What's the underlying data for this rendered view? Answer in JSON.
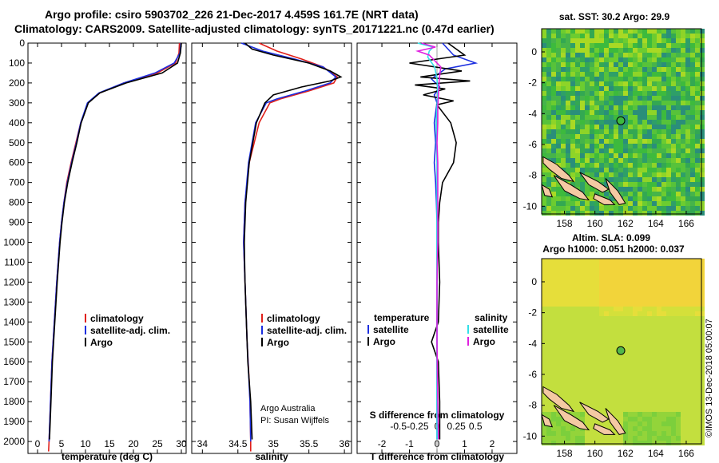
{
  "header": {
    "title_line1": "Argo profile: csiro 5903702_226 21-Dec-2017 4.459S 161.7E (NRT data)",
    "title_line2": "Climatology: CARS2009. Satellite-adjusted climatology: synTS_20171221.nc (0.47d earlier)"
  },
  "colors": {
    "climatology": "#e0201a",
    "satellite": "#1c2fe0",
    "argo": "#000000",
    "sat_salinity": "#33e0e8",
    "argo_salinity": "#e020e0"
  },
  "chart_data": [
    {
      "type": "line",
      "xlabel": "temperature (deg C)",
      "xticks": [
        "0",
        "5",
        "10",
        "15",
        "20",
        "25",
        "30"
      ],
      "yticks": [
        "0",
        "100",
        "200",
        "300",
        "400",
        "500",
        "600",
        "700",
        "800",
        "900",
        "1000",
        "1100",
        "1200",
        "1300",
        "1400",
        "1500",
        "1600",
        "1700",
        "1800",
        "1900",
        "2000"
      ],
      "xlim": [
        -2,
        31
      ],
      "ylim": [
        0,
        2060
      ],
      "legend": [
        "climatology",
        "satellite-adj. clim.",
        "Argo"
      ],
      "series": [
        {
          "name": "climatology",
          "depth": [
            0,
            50,
            100,
            150,
            200,
            250,
            300,
            400,
            500,
            600,
            700,
            800,
            900,
            1000,
            1200,
            1400,
            1600,
            1800,
            2000,
            2050
          ],
          "values": [
            29.6,
            29.5,
            28.8,
            25,
            18,
            13,
            10.5,
            9,
            8,
            7,
            6.1,
            5.5,
            5,
            4.6,
            4,
            3.5,
            3,
            2.7,
            2.4,
            2.3
          ]
        },
        {
          "name": "satellite-adj. clim.",
          "depth": [
            0,
            50,
            100,
            150,
            200,
            250,
            300,
            400,
            500,
            600,
            700,
            800,
            900,
            1000,
            1200,
            1400,
            1600,
            1800,
            2000
          ],
          "values": [
            29.9,
            29.7,
            28.5,
            24.5,
            18,
            12.8,
            10.4,
            9,
            8.1,
            7.1,
            6.2,
            5.5,
            5,
            4.6,
            4,
            3.5,
            3,
            2.7,
            2.4
          ]
        },
        {
          "name": "Argo",
          "depth": [
            0,
            50,
            100,
            150,
            200,
            250,
            300,
            400,
            500,
            600,
            700,
            800,
            900,
            1000,
            1200,
            1400,
            1600,
            1800,
            1990
          ],
          "values": [
            30,
            29.8,
            29.2,
            26,
            18.5,
            13,
            10.6,
            9.1,
            8.2,
            7.2,
            6.3,
            5.6,
            5.1,
            4.7,
            4.1,
            3.6,
            3.1,
            2.8,
            2.5
          ]
        }
      ]
    },
    {
      "type": "line",
      "xlabel": "salinity",
      "xticks": [
        "34",
        "34.5",
        "35",
        "35.5",
        "36"
      ],
      "xlim": [
        33.85,
        36.1
      ],
      "ylim": [
        0,
        2060
      ],
      "legend": [
        "climatology",
        "satellite-adj. clim.",
        "Argo"
      ],
      "annotation": [
        "Argo Australia",
        "PI: Susan Wijffels"
      ],
      "series": [
        {
          "name": "climatology",
          "depth": [
            0,
            40,
            80,
            120,
            170,
            200,
            240,
            280,
            300,
            400,
            600,
            800,
            1000,
            1200,
            1500,
            1700,
            1800,
            2000,
            2050
          ],
          "values": [
            34.8,
            35.05,
            35.4,
            35.7,
            35.9,
            35.85,
            35.5,
            35.1,
            34.95,
            34.8,
            34.66,
            34.6,
            34.58,
            34.6,
            34.63,
            34.66,
            34.67,
            34.68,
            34.68
          ]
        },
        {
          "name": "satellite-adj. clim.",
          "depth": [
            0,
            40,
            80,
            120,
            170,
            200,
            240,
            280,
            300,
            400,
            600,
            800,
            1000,
            1200,
            1500,
            1800,
            2000
          ],
          "values": [
            34.55,
            34.85,
            35.3,
            35.7,
            35.88,
            35.8,
            35.45,
            35.05,
            34.9,
            34.75,
            34.65,
            34.6,
            34.58,
            34.6,
            34.63,
            34.67,
            34.68
          ]
        },
        {
          "name": "Argo",
          "depth": [
            0,
            30,
            60,
            100,
            140,
            170,
            190,
            220,
            260,
            300,
            400,
            600,
            800,
            1000,
            1200,
            1400,
            1600,
            1800,
            1990
          ],
          "values": [
            34.6,
            34.7,
            35.0,
            35.5,
            35.8,
            35.95,
            35.8,
            35.4,
            35.0,
            34.88,
            34.76,
            34.66,
            34.61,
            34.59,
            34.6,
            34.62,
            34.64,
            34.68,
            34.7
          ]
        }
      ]
    },
    {
      "type": "line",
      "xlabel": "T difference from climatology",
      "title": "S difference from climatology",
      "xticks": [
        "-2",
        "-1",
        "0",
        "1",
        "2"
      ],
      "xticks_secondary": [
        "-0.5",
        "-0.25",
        "0",
        "0.25",
        "0.5"
      ],
      "xlim": [
        -2.9,
        2.9
      ],
      "ylim": [
        0,
        2060
      ],
      "legend_left_heading": "temperature",
      "legend_right_heading": "salinity",
      "legend_left": [
        "satellite",
        "Argo"
      ],
      "legend_right": [
        "satellite",
        "Argo"
      ],
      "series": [
        {
          "name": "temperature satellite",
          "depth": [
            0,
            60,
            100,
            130,
            180,
            220,
            260,
            300,
            400,
            500,
            600,
            700,
            800,
            900,
            1000,
            1200,
            1400,
            1600,
            1800,
            1990
          ],
          "values": [
            0.2,
            0.6,
            1.4,
            0.3,
            -0.2,
            0.1,
            -0.1,
            0,
            -0.1,
            -0.05,
            -0.1,
            -0.05,
            -0.02,
            0,
            0,
            0,
            0,
            0,
            0,
            0
          ]
        },
        {
          "name": "temperature Argo",
          "depth": [
            0,
            60,
            100,
            140,
            170,
            190,
            210,
            230,
            260,
            290,
            310,
            400,
            500,
            600,
            700,
            800,
            900,
            1000,
            1200,
            1400,
            1500,
            1600,
            1800,
            1990
          ],
          "values": [
            0.4,
            1.0,
            -1.0,
            0.9,
            -0.6,
            1.2,
            -0.8,
            0.3,
            -0.5,
            0.6,
            0,
            0.5,
            0.7,
            0.6,
            0.2,
            0.1,
            0.05,
            0.05,
            0.1,
            0.05,
            -0.2,
            0.05,
            0.1,
            0.1
          ]
        },
        {
          "name": "salinity satellite",
          "depth": [
            0,
            20,
            40,
            70,
            120,
            180,
            250,
            320,
            400,
            600,
            800,
            1000,
            1200,
            1500,
            1800,
            1990
          ],
          "values": [
            -0.25,
            -0.05,
            -0.1,
            -0.12,
            -0.03,
            0,
            0.01,
            0,
            -0.01,
            0,
            0,
            0,
            0,
            0,
            0,
            0
          ]
        },
        {
          "name": "salinity Argo",
          "depth": [
            0,
            20,
            40,
            60,
            80,
            120,
            180,
            250,
            320,
            400,
            500,
            600,
            800,
            1000,
            1200,
            1500,
            1800,
            1990
          ],
          "values": [
            -0.2,
            -0.02,
            -0.25,
            -0.1,
            -0.05,
            0.05,
            0.03,
            0.02,
            0.01,
            0.01,
            0.0,
            0.01,
            0.01,
            0.01,
            0,
            0,
            0.01,
            0.02
          ]
        }
      ]
    },
    {
      "type": "heatmap",
      "title": "sat. SST: 30.2 Argo: 29.9",
      "xticks": [
        "158",
        "160",
        "162",
        "164",
        "166"
      ],
      "yticks": [
        "0",
        "-2",
        "-4",
        "-6",
        "-8",
        "-10"
      ],
      "xlim": [
        156.5,
        167
      ],
      "ylim": [
        -10.5,
        1.5
      ],
      "marker": {
        "lon": 161.7,
        "lat": -4.459
      },
      "sst_sat": 30.2,
      "sst_argo": 29.9
    },
    {
      "type": "heatmap",
      "title_line1": "Altim. SLA: 0.099",
      "title_line2": "Argo h1000: 0.051 h2000: 0.037",
      "xticks": [
        "158",
        "160",
        "162",
        "164",
        "166"
      ],
      "yticks": [
        "0",
        "-2",
        "-4",
        "-6",
        "-8",
        "-10"
      ],
      "xlim": [
        156.5,
        167
      ],
      "ylim": [
        -10.5,
        1.5
      ],
      "marker": {
        "lon": 161.7,
        "lat": -4.459
      },
      "sla": 0.099,
      "h1000": 0.051,
      "h2000": 0.037
    }
  ],
  "stamp": "©IMOS 13-Dec-2018 05:00:07"
}
